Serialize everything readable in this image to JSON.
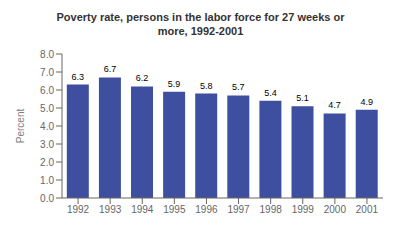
{
  "chart_data": {
    "type": "bar",
    "title": "Poverty rate, persons in the labor force for 27 weeks or\nmore, 1992-2001",
    "ylabel": "Percent",
    "categories": [
      "1992",
      "1993",
      "1994",
      "1995",
      "1996",
      "1997",
      "1998",
      "1999",
      "2000",
      "2001"
    ],
    "values": [
      6.3,
      6.7,
      6.2,
      5.9,
      5.8,
      5.7,
      5.4,
      5.1,
      4.7,
      4.9
    ],
    "color": "#3F4FA0",
    "ylim": [
      0.0,
      8.0
    ],
    "yticks": [
      {
        "value": 0,
        "label": "0.0"
      },
      {
        "value": 1,
        "label": "1.0"
      },
      {
        "value": 2,
        "label": "2.0"
      },
      {
        "value": 3,
        "label": "3.0"
      },
      {
        "value": 4,
        "label": "4.0"
      },
      {
        "value": 5,
        "label": "5.0"
      },
      {
        "value": 6,
        "label": "6.0"
      },
      {
        "value": 7,
        "label": "7.0"
      },
      {
        "value": 8,
        "label": "8.0"
      }
    ],
    "grid": false,
    "data_labels": true
  }
}
